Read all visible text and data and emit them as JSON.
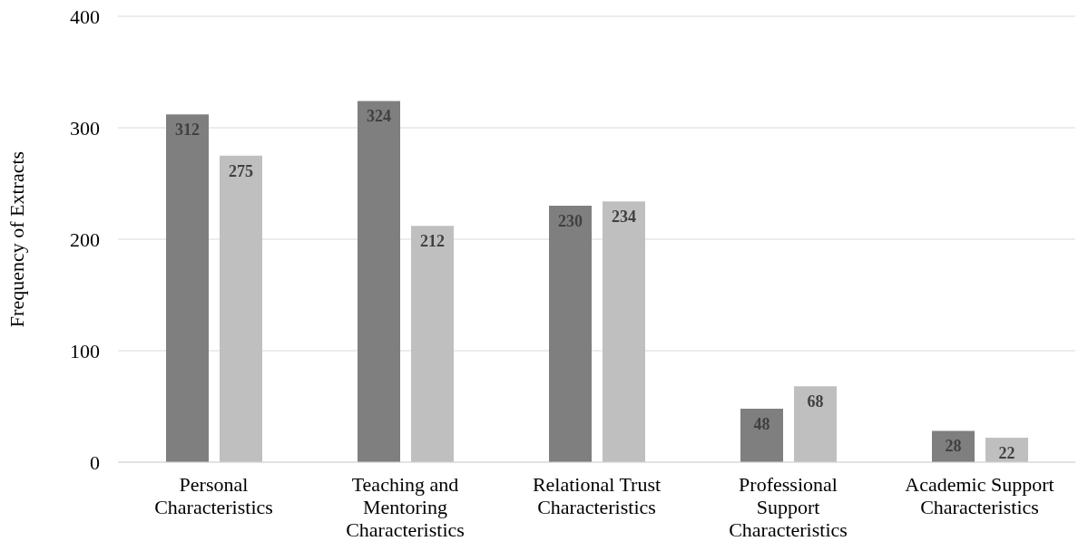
{
  "chart_data": {
    "type": "bar",
    "ylabel": "Frequency of Extracts",
    "categories": [
      "Personal Characteristics",
      "Teaching and Mentoring Characteristics",
      "Relational Trust Characteristics",
      "Professional Support Characteristics",
      "Academic Support Characteristics"
    ],
    "series": [
      {
        "color": "#7f7f7f",
        "values": [
          312,
          324,
          230,
          48,
          28
        ]
      },
      {
        "color": "#bfbfbf",
        "values": [
          275,
          212,
          234,
          68,
          22
        ]
      }
    ],
    "ylim": [
      0,
      400
    ],
    "yticks": [
      0,
      100,
      200,
      300,
      400
    ],
    "grid": "y",
    "data_labels": true
  }
}
